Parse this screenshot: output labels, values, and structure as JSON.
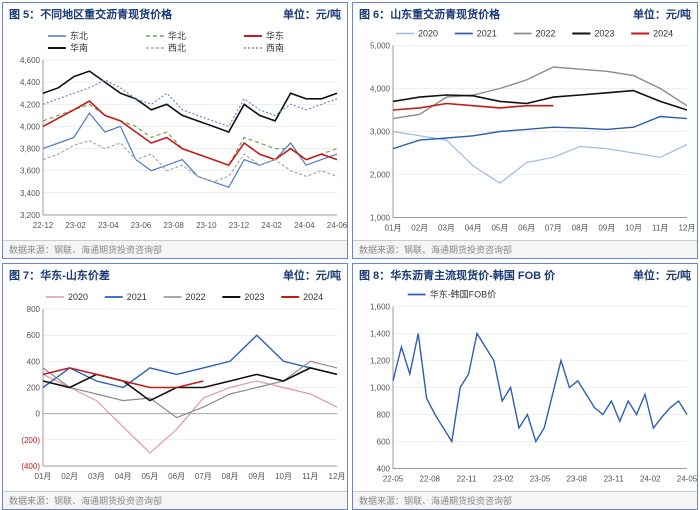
{
  "panels": {
    "p5": {
      "no": "图 5：",
      "title": "不同地区重交沥青现货价格",
      "unit": "单位：元/吨",
      "footer": "数据来源：钢联、海通期货投资咨询部",
      "type": "line",
      "ylim": [
        3200,
        4600
      ],
      "ytick_step": 200,
      "xticks": [
        "22-12",
        "23-02",
        "23-04",
        "23-06",
        "23-08",
        "23-10",
        "23-12",
        "24-02",
        "24-04",
        "24-06"
      ],
      "series": [
        {
          "name": "东北",
          "color": "#4a7ac8",
          "dash": "",
          "w": 1.2,
          "data": [
            3800,
            3850,
            3900,
            4120,
            3950,
            4000,
            3700,
            3600,
            3650,
            3700,
            3550,
            3500,
            3450,
            3700,
            3650,
            3700,
            3850,
            3650,
            3700,
            3750
          ]
        },
        {
          "name": "华北",
          "color": "#6aa84f",
          "dash": "4 3",
          "w": 1.2,
          "data": [
            4050,
            4100,
            4150,
            4200,
            4100,
            4050,
            4000,
            3900,
            3950,
            3800,
            3750,
            3700,
            3650,
            3900,
            3850,
            3800,
            3800,
            3700,
            3750,
            3800
          ]
        },
        {
          "name": "华东",
          "color": "#c61a1a",
          "dash": "",
          "w": 1.6,
          "data": [
            4000,
            4075,
            4150,
            4230,
            4100,
            4050,
            3950,
            3850,
            3900,
            3800,
            3750,
            3700,
            3650,
            3850,
            3750,
            3700,
            3800,
            3700,
            3750,
            3700
          ]
        },
        {
          "name": "华南",
          "color": "#111111",
          "dash": "",
          "w": 1.6,
          "data": [
            4300,
            4350,
            4450,
            4500,
            4400,
            4300,
            4250,
            4150,
            4200,
            4100,
            4050,
            4000,
            3950,
            4200,
            4100,
            4050,
            4300,
            4250,
            4250,
            4300
          ]
        },
        {
          "name": "西北",
          "color": "#a8a8a8",
          "dash": "3 2",
          "w": 1.2,
          "data": [
            3700,
            3750,
            3830,
            3870,
            3800,
            3850,
            3700,
            3750,
            3600,
            3650,
            3550,
            3500,
            3550,
            3750,
            3650,
            3700,
            3600,
            3550,
            3600,
            3550
          ]
        },
        {
          "name": "西南",
          "color": "#6b87c8",
          "dash": "2 2",
          "w": 1.2,
          "data": [
            4200,
            4250,
            4300,
            4350,
            4420,
            4350,
            4250,
            4200,
            4300,
            4150,
            4100,
            4050,
            4000,
            4250,
            4150,
            4100,
            4200,
            4150,
            4200,
            4250
          ]
        }
      ],
      "legend_cols": 3
    },
    "p6": {
      "no": "图 6：",
      "title": "山东重交沥青现货价格",
      "unit": "单位：元/吨",
      "footer": "数据来源：钢联、海通期货投资咨询部",
      "type": "line",
      "ylim": [
        1000,
        5000
      ],
      "ytick_step": 1000,
      "xticks": [
        "01月",
        "02月",
        "03月",
        "04月",
        "05月",
        "06月",
        "07月",
        "08月",
        "09月",
        "10月",
        "11月",
        "12月"
      ],
      "series": [
        {
          "name": "2020",
          "color": "#9bb9e9",
          "dash": "",
          "w": 1.2,
          "data": [
            3000,
            2900,
            2800,
            2200,
            1800,
            2280,
            2400,
            2650,
            2600,
            2500,
            2400,
            2700
          ]
        },
        {
          "name": "2021",
          "color": "#2d5fb5",
          "dash": "",
          "w": 1.4,
          "data": [
            2600,
            2800,
            2850,
            2900,
            3000,
            3050,
            3100,
            3080,
            3050,
            3100,
            3350,
            3300
          ]
        },
        {
          "name": "2022",
          "color": "#8c8c8c",
          "dash": "",
          "w": 1.4,
          "data": [
            3300,
            3400,
            3800,
            3850,
            4000,
            4200,
            4500,
            4450,
            4400,
            4300,
            4000,
            3600
          ]
        },
        {
          "name": "2023",
          "color": "#111111",
          "dash": "",
          "w": 1.6,
          "data": [
            3700,
            3800,
            3850,
            3830,
            3700,
            3650,
            3800,
            3850,
            3900,
            3950,
            3700,
            3500
          ]
        },
        {
          "name": "2024",
          "color": "#c61a1a",
          "dash": "",
          "w": 1.6,
          "data": [
            3500,
            3550,
            3650,
            3600,
            3550,
            3600,
            3600
          ]
        }
      ],
      "legend_cols": 5
    },
    "p7": {
      "no": "图 7：",
      "title": "华东-山东价差",
      "unit": "单位：元/吨",
      "footer": "数据来源：钢联、海通期货投资咨询部",
      "type": "line",
      "ylim": [
        -400,
        800
      ],
      "ytick_step": 200,
      "neg_ticks": [
        -200,
        -400
      ],
      "xticks": [
        "01月",
        "02月",
        "03月",
        "04月",
        "05月",
        "06月",
        "07月",
        "08月",
        "09月",
        "10月",
        "11月",
        "12月"
      ],
      "series": [
        {
          "name": "2020",
          "color": "#e39aa0",
          "dash": "",
          "w": 1.2,
          "data": [
            300,
            200,
            100,
            -100,
            -300,
            -120,
            120,
            200,
            250,
            200,
            150,
            50
          ]
        },
        {
          "name": "2021",
          "color": "#2d5fb5",
          "dash": "",
          "w": 1.4,
          "data": [
            200,
            350,
            250,
            200,
            350,
            300,
            350,
            400,
            600,
            400,
            350,
            300
          ]
        },
        {
          "name": "2022",
          "color": "#8c8c8c",
          "dash": "",
          "w": 1.2,
          "data": [
            350,
            200,
            150,
            100,
            120,
            -30,
            50,
            150,
            200,
            250,
            400,
            350
          ]
        },
        {
          "name": "2023",
          "color": "#111111",
          "dash": "",
          "w": 1.6,
          "data": [
            250,
            200,
            300,
            250,
            100,
            200,
            200,
            250,
            300,
            250,
            350,
            300
          ]
        },
        {
          "name": "2024",
          "color": "#c61a1a",
          "dash": "",
          "w": 1.6,
          "data": [
            300,
            350,
            300,
            250,
            200,
            200,
            250
          ]
        }
      ],
      "legend_cols": 5
    },
    "p8": {
      "no": "图 8：",
      "title": "华东沥青主流现货价-韩国 FOB 价",
      "unit": "单位：元/吨",
      "footer": "数据来源：钢联、海通期货投资咨询部",
      "type": "line",
      "ylim": [
        400,
        1600
      ],
      "ytick_step": 200,
      "xticks": [
        "22-05",
        "22-08",
        "22-11",
        "23-02",
        "23-05",
        "23-08",
        "23-11",
        "24-02",
        "24-05"
      ],
      "series": [
        {
          "name": "华东-韩国FOB价",
          "color": "#2d5fb5",
          "dash": "",
          "w": 1.4,
          "data": [
            1050,
            1300,
            1100,
            1400,
            920,
            800,
            700,
            600,
            1000,
            1100,
            1400,
            1300,
            1200,
            900,
            1000,
            700,
            800,
            600,
            700,
            950,
            1200,
            1000,
            1050,
            950,
            850,
            800,
            900,
            750,
            900,
            800,
            950,
            700,
            780,
            850,
            900,
            800
          ]
        }
      ],
      "legend_cols": 1
    }
  },
  "style": {
    "axis_color": "#999999",
    "grid_color": "#dcdcdc",
    "tick_fontsize": 8,
    "tick_color": "#555555",
    "legend_fontsize": 9,
    "neg_color": "#c61a1a",
    "title_color": "#1a3a75"
  }
}
